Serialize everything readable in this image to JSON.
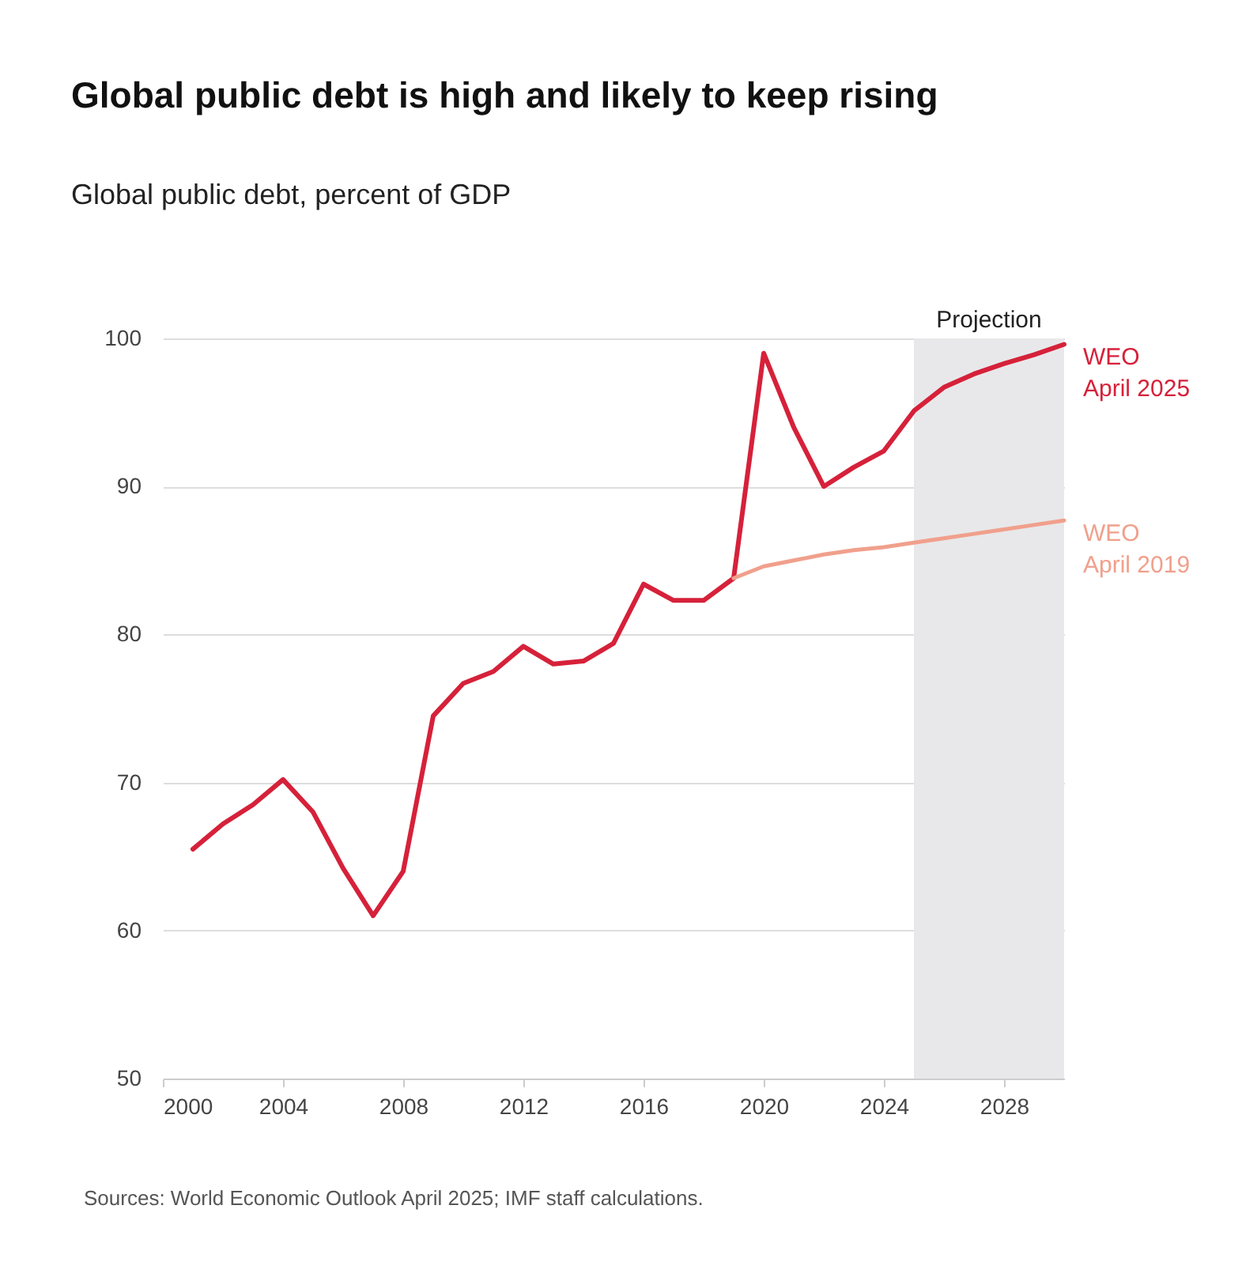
{
  "chart_data": {
    "type": "line",
    "title": "Global public debt is high and likely to keep rising",
    "subtitle": "Global public debt, percent of GDP",
    "annotations": [
      "Sources: World Economic Outlook April 2025; IMF staff calculations."
    ],
    "series": [
      {
        "name": "WEO\nApril 2025",
        "color": "#d6213a",
        "x": [
          2001,
          2002,
          2003,
          2004,
          2005,
          2006,
          2007,
          2008,
          2009,
          2010,
          2011,
          2012,
          2013,
          2014,
          2015,
          2016,
          2017,
          2018,
          2019,
          2020,
          2021,
          2022,
          2023,
          2024,
          2025,
          2026,
          2027,
          2028,
          2029,
          2030
        ],
        "values": [
          65.5,
          67.2,
          68.5,
          70.2,
          68,
          64.2,
          61,
          64,
          74.5,
          76.7,
          77.5,
          79.2,
          78,
          78.2,
          79.4,
          83.4,
          82.3,
          82.3,
          83.8,
          99,
          94,
          90,
          91.3,
          92.4,
          95.1,
          96.7,
          97.6,
          98.3,
          98.9,
          99.6
        ]
      },
      {
        "name": "WEO\nApril 2019",
        "color": "#f0a08c",
        "x": [
          2019,
          2020,
          2021,
          2022,
          2023,
          2024,
          2025,
          2026,
          2027,
          2028,
          2029,
          2030
        ],
        "values": [
          83.8,
          84.6,
          85,
          85.4,
          85.7,
          85.9,
          86.2,
          86.5,
          86.8,
          87.1,
          87.4,
          87.7
        ]
      }
    ],
    "xlim": [
      2000,
      2030
    ],
    "xticks": [
      2000,
      2004,
      2008,
      2012,
      2016,
      2020,
      2024,
      2028
    ],
    "ylim": [
      50,
      100
    ],
    "yticks": [
      50,
      60,
      70,
      80,
      90,
      100
    ],
    "bands": [
      {
        "axis": "x",
        "from": 2025,
        "to": 2030,
        "label": "Projection",
        "color": "#e8e8ea"
      }
    ],
    "grid": "y",
    "marker": "none",
    "line_style": "solid"
  }
}
